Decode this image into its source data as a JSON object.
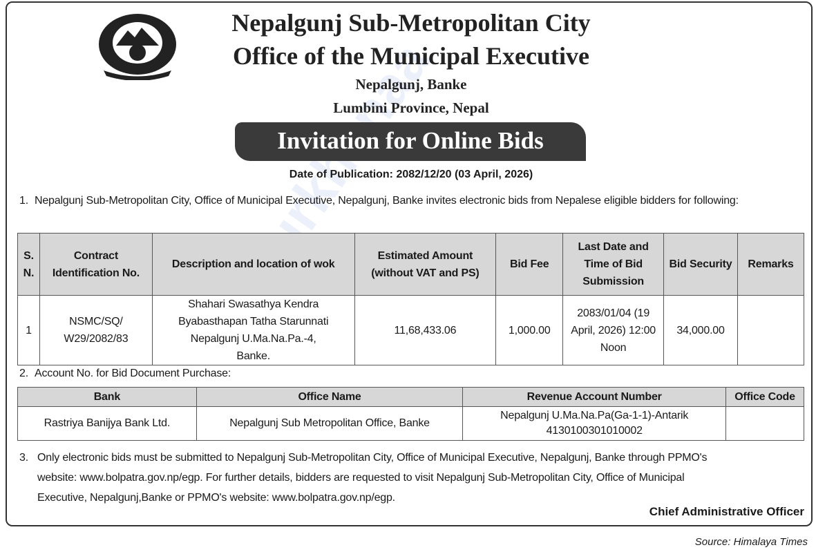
{
  "header": {
    "title": "Nepalgunj Sub-Metropolitan City",
    "subtitle": "Office of the Municipal Executive",
    "address_line1": "Nepalgunj, Banke",
    "address_line2": "Lumbini Province, Nepal",
    "banner": "Invitation for Online Bids",
    "publication_date": "Date of Publication: 2082/12/20 (03 April, 2026)",
    "logo_icon": "nepal-emblem-icon"
  },
  "section1": {
    "number": "1.",
    "text": "Nepalgunj Sub-Metropolitan City, Office of Municipal Executive, Nepalgunj, Banke invites electronic bids from Nepalese eligible bidders for following:"
  },
  "bids_table": {
    "headers": [
      "S. N.",
      "Contract Identification No.",
      "Description and location of wok",
      "Estimated Amount (without VAT and PS)",
      "Bid Fee",
      "Last Date and Time of Bid Submission",
      "Bid Security",
      "Remarks"
    ],
    "rows": [
      [
        "1",
        "NSMC/SQ/ W29/2082/83",
        "Shahari Swasathya Kendra Byabasthapan Tatha Starunnati Nepalgunj U.Ma.Na.Pa.-4, Banke.",
        "11,68,433.06",
        "1,000.00",
        "2083/01/04 (19 April, 2026) 12:00 Noon",
        "34,000.00",
        ""
      ]
    ]
  },
  "section2": {
    "number": "2.",
    "text": "Account No. for Bid Document Purchase:"
  },
  "account_table": {
    "headers": [
      "Bank",
      "Office Name",
      "Revenue Account Number",
      "Office Code"
    ],
    "rows": [
      [
        "Rastriya Banijya Bank Ltd.",
        "Nepalgunj Sub Metropolitan Office, Banke",
        "Nepalgunj U.Ma.Na.Pa(Ga-1-1)-Antarik 4130100301010002",
        ""
      ]
    ]
  },
  "section3": {
    "number": "3.",
    "line1": "Only electronic bids must be submitted to Nepalgunj Sub-Metropolitan City, Office of Municipal Executive, Nepalgunj, Banke through PPMO's",
    "line2": "website: www.bolpatra.gov.np/egp. For further details, bidders are requested to visit Nepalgunj Sub-Metropolitan City, Office of Municipal",
    "line3": "Executive, Nepalgunj,Banke  or PPMO's website: www.bolpatra.gov.np/egp."
  },
  "signature": "Chief Administrative Officer",
  "source": "Source: Himalaya Times",
  "watermark": "Surkhanaa"
}
